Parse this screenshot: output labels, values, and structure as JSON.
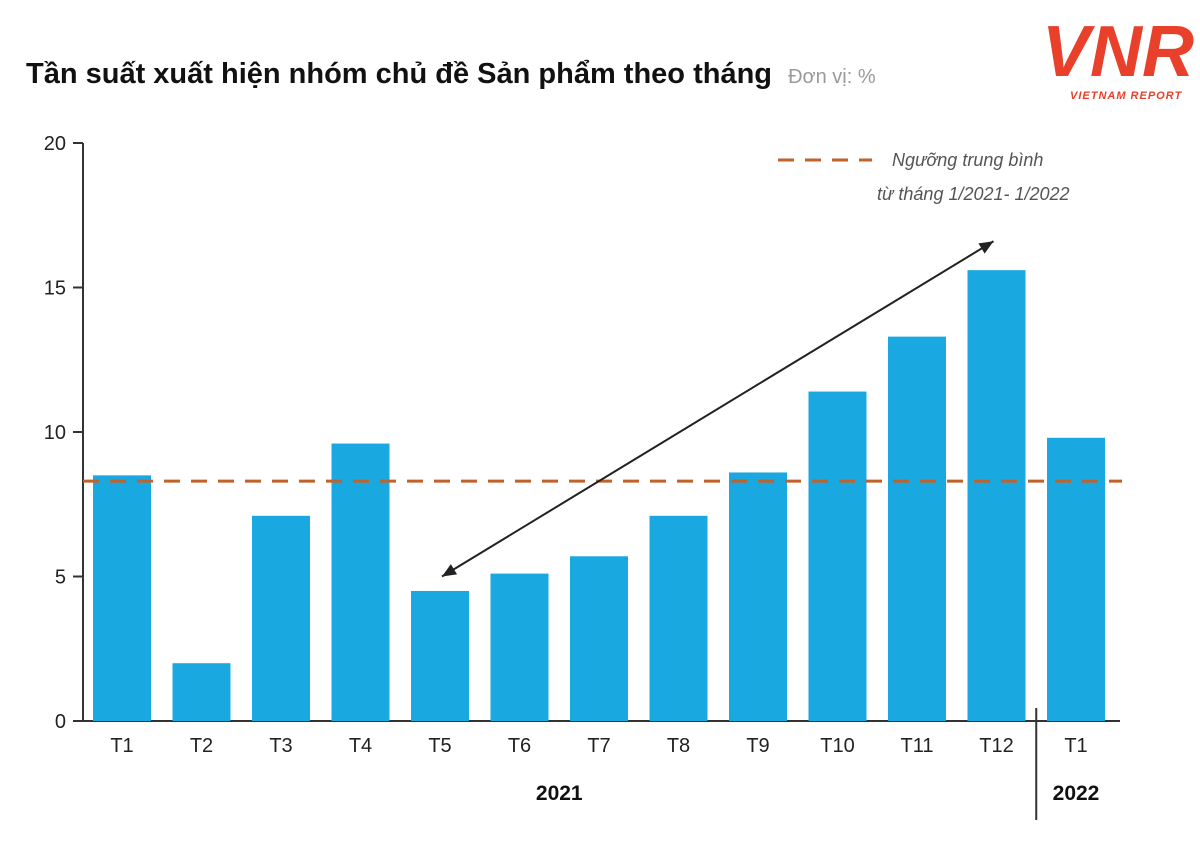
{
  "header": {
    "title": "Tần suất xuất hiện nhóm chủ đề Sản phẩm theo tháng",
    "unit": "Đơn vị: %"
  },
  "logo": {
    "text": "VNR",
    "subtext": "VIETNAM REPORT",
    "color": "#e8402a"
  },
  "colors": {
    "bar": "#1aa8e0",
    "threshold": "#c0622a",
    "arrow": "#222222",
    "axis": "#333333"
  },
  "chart_data": {
    "type": "bar",
    "title": "Tần suất xuất hiện nhóm chủ đề Sản phẩm theo tháng",
    "xlabel": "",
    "ylabel": "Đơn vị: %",
    "ylim": [
      0,
      20
    ],
    "yticks": [
      0,
      5,
      10,
      15,
      20
    ],
    "categories": [
      "T1",
      "T2",
      "T3",
      "T4",
      "T5",
      "T6",
      "T7",
      "T8",
      "T9",
      "T10",
      "T11",
      "T12",
      "T1"
    ],
    "values": [
      8.5,
      2.0,
      7.1,
      9.6,
      4.5,
      5.1,
      5.7,
      7.1,
      8.6,
      11.4,
      13.3,
      15.6,
      9.8
    ],
    "year_groups": [
      {
        "label": "2021",
        "from": 0,
        "to": 11
      },
      {
        "label": "2022",
        "from": 12,
        "to": 12
      }
    ],
    "threshold": {
      "value": 8.3,
      "label_line1": "Ngưỡng trung bình",
      "label_line2": "từ tháng 1/2021- 1/2022"
    },
    "trend_arrow": {
      "from_index": 4,
      "from_value": 5.0,
      "to_index": 11,
      "to_value": 16.6
    },
    "legend_position": "top-right"
  }
}
